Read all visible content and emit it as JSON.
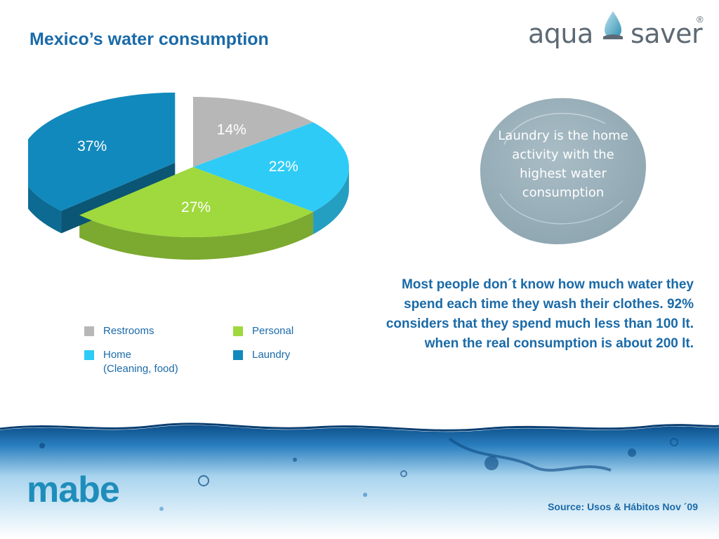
{
  "title": "Mexico’s water consumption",
  "logo": {
    "left": "aqua",
    "right": "saver",
    "mark": "®"
  },
  "chart_data": {
    "type": "pie",
    "categories": [
      "Restrooms",
      "Home\n(Cleaning, food)",
      "Personal",
      "Laundry"
    ],
    "values": [
      14,
      22,
      27,
      37
    ],
    "value_labels": [
      "14%",
      "22%",
      "27%",
      "37%"
    ],
    "colors": [
      "#b7b7b7",
      "#2ecbf7",
      "#9fd93d",
      "#1189bd"
    ],
    "exploded": [
      "Laundry"
    ],
    "legend_position": "bottom"
  },
  "callout": "Laundry is the home activity with the highest water consumption",
  "body": "Most people don´t know how much water they spend each time they wash their clothes. 92%  considers that they spend much less than 100 lt.  when the real consumption is about 200 lt.",
  "brand": "mabe",
  "source": "Source: Usos & Hábitos Nov ´09"
}
